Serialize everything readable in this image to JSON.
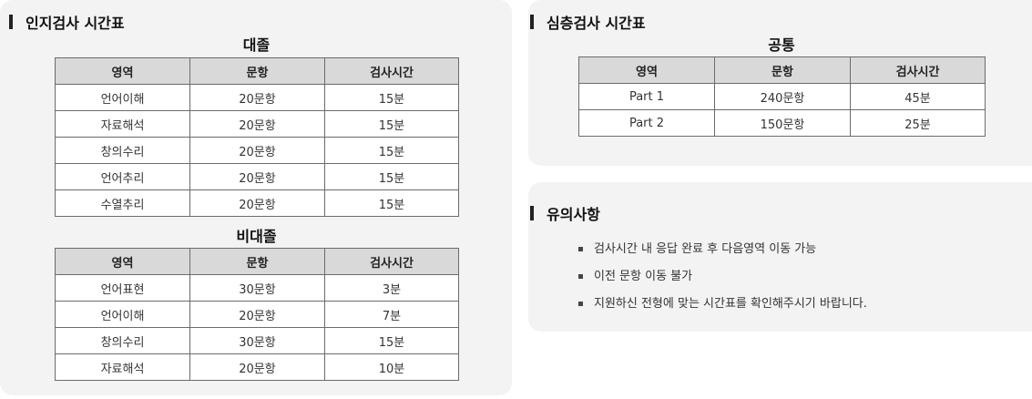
{
  "cognitive": {
    "title": "인지검사 시간표",
    "graduate": {
      "heading": "대졸",
      "headers": [
        "영역",
        "문항",
        "검사시간"
      ],
      "rows": [
        [
          "언어이해",
          "20문항",
          "15분"
        ],
        [
          "자료해석",
          "20문항",
          "15분"
        ],
        [
          "창의수리",
          "20문항",
          "15분"
        ],
        [
          "언어추리",
          "20문항",
          "15분"
        ],
        [
          "수열추리",
          "20문항",
          "15분"
        ]
      ]
    },
    "non_graduate": {
      "heading": "비대졸",
      "headers": [
        "영역",
        "문항",
        "검사시간"
      ],
      "rows": [
        [
          "언어표현",
          "30문항",
          "3분"
        ],
        [
          "언어이해",
          "20문항",
          "7분"
        ],
        [
          "창의수리",
          "30문항",
          "15분"
        ],
        [
          "자료해석",
          "20문항",
          "10분"
        ]
      ]
    }
  },
  "deep": {
    "title": "심층검사 시간표",
    "common": {
      "heading": "공통",
      "headers": [
        "영역",
        "문항",
        "검사시간"
      ],
      "rows": [
        [
          "Part 1",
          "240문항",
          "45분"
        ],
        [
          "Part 2",
          "150문항",
          "25분"
        ]
      ]
    }
  },
  "notes": {
    "title": "유의사항",
    "items": [
      "검사시간 내 응답 완료 후 다음영역 이동 가능",
      "이전 문항 이동 불가",
      "지원하신 전형에 맞는 시간표를 확인해주시기 바랍니다."
    ]
  }
}
